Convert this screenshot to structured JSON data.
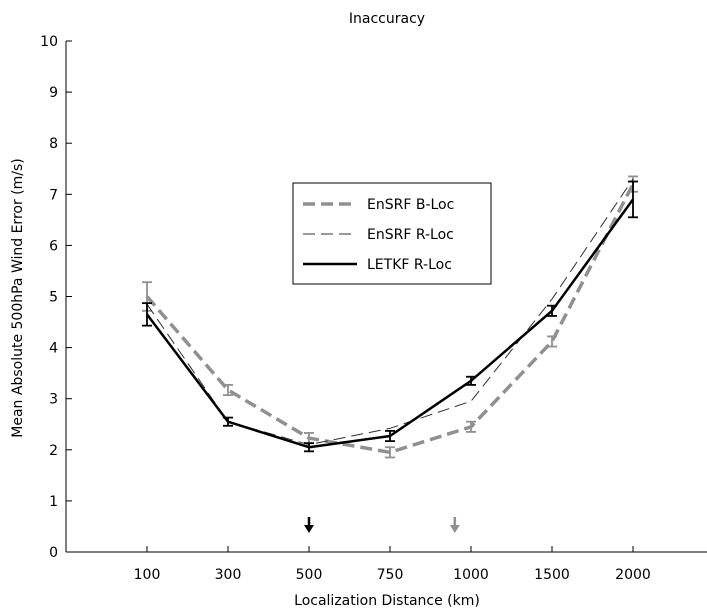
{
  "chart_data": {
    "type": "line",
    "title": "Inaccuracy",
    "xlabel": "Localization Distance (km)",
    "ylabel": "Mean Absolute 500hPa Wind Error (m/s)",
    "categories": [
      "100",
      "300",
      "500",
      "750",
      "1000",
      "1500",
      "2000"
    ],
    "ylim": [
      0,
      10
    ],
    "yticks": [
      0,
      1,
      2,
      3,
      4,
      5,
      6,
      7,
      8,
      9,
      10
    ],
    "grid": false,
    "legend_position": "center",
    "series": [
      {
        "name": "EnSRF B-Loc",
        "color": "#909090",
        "style": "thick-dashed",
        "values": [
          5.0,
          3.17,
          2.23,
          1.95,
          2.45,
          4.12,
          7.2
        ],
        "err": [
          0.28,
          0.1,
          0.1,
          0.1,
          0.1,
          0.1,
          0.15
        ]
      },
      {
        "name": "EnSRF R-Loc",
        "color": "#303030",
        "style": "thin-dashed",
        "values": [
          4.85,
          2.55,
          2.1,
          2.42,
          2.95,
          4.95,
          7.3
        ],
        "err": [
          0,
          0,
          0,
          0,
          0,
          0,
          0
        ]
      },
      {
        "name": "LETKF R-Loc",
        "color": "#000000",
        "style": "solid",
        "values": [
          4.65,
          2.55,
          2.05,
          2.27,
          3.35,
          4.72,
          6.9
        ],
        "err": [
          0.22,
          0.08,
          0.08,
          0.1,
          0.08,
          0.1,
          0.35
        ]
      }
    ],
    "markers": [
      {
        "position": 2,
        "color": "#000000"
      },
      {
        "position": 3.8,
        "color": "#909090"
      }
    ]
  }
}
